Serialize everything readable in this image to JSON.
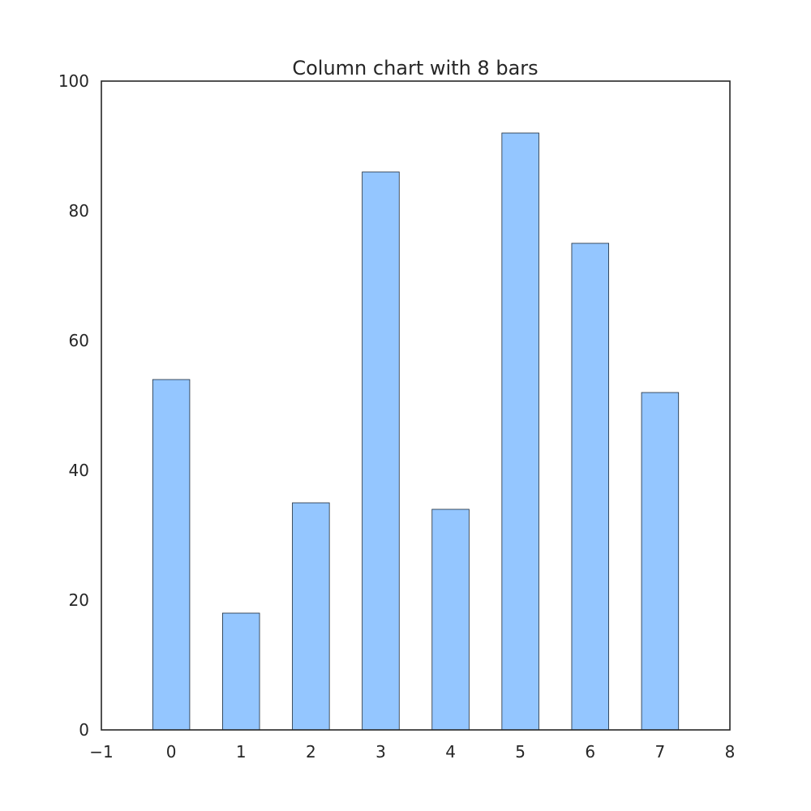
{
  "chart_data": {
    "type": "bar",
    "title": "Column chart with 8 bars",
    "xlabel": "",
    "ylabel": "",
    "categories": [
      0,
      1,
      2,
      3,
      4,
      5,
      6,
      7
    ],
    "values": [
      54,
      18,
      35,
      86,
      34,
      92,
      75,
      52
    ],
    "bar_width": 0.53,
    "xlim": [
      -1,
      8
    ],
    "ylim": [
      0,
      100
    ],
    "x_ticks": [
      -1,
      0,
      1,
      2,
      3,
      4,
      5,
      6,
      7,
      8
    ],
    "x_tick_labels": [
      "−1",
      "0",
      "1",
      "2",
      "3",
      "4",
      "5",
      "6",
      "7",
      "8"
    ],
    "y_ticks": [
      0,
      20,
      40,
      60,
      80,
      100
    ],
    "y_tick_labels": [
      "0",
      "20",
      "40",
      "60",
      "80",
      "100"
    ],
    "grid": false,
    "legend": "none",
    "colors": {
      "bar": "#94c6ff",
      "bar_edge": "#1c2b3a",
      "frame": "#262626",
      "text": "#262626",
      "background": "#ffffff"
    }
  }
}
